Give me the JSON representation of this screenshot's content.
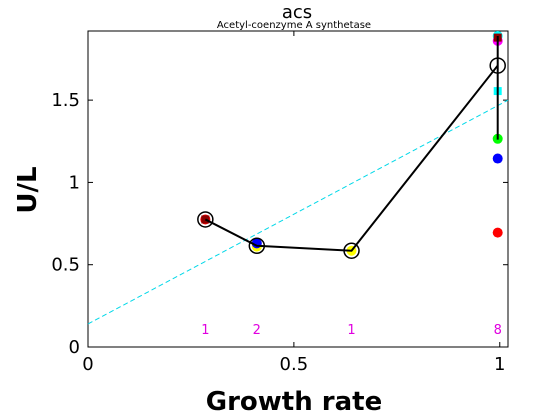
{
  "chart_data": {
    "type": "scatter",
    "title": "acs",
    "subtitle": "Acetyl-coenzyme A synthetase",
    "xlabel": "Growth rate",
    "ylabel": "U/L",
    "xlim": [
      0,
      1.02
    ],
    "ylim": [
      0,
      1.92
    ],
    "x_ticks": [
      0,
      0.5,
      1
    ],
    "x_tick_labels": [
      "0",
      "0.5",
      "1"
    ],
    "y_ticks": [
      0,
      0.5,
      1,
      1.5
    ],
    "y_tick_labels": [
      "0",
      "0.5",
      "1",
      "1.5"
    ],
    "grid": false,
    "mean_line": {
      "color": "#000000",
      "points": [
        {
          "x": 0.285,
          "y": 0.775
        },
        {
          "x": 0.41,
          "y": 0.615
        },
        {
          "x": 0.64,
          "y": 0.585
        },
        {
          "x": 0.995,
          "y": 1.71
        }
      ]
    },
    "mean_line_error_bar": {
      "x": 0.995,
      "y_low": 1.26,
      "y_high": 1.89
    },
    "fit_line": {
      "color": "#00d8e8",
      "style": "dashed",
      "x": [
        0,
        1.02
      ],
      "y": [
        0.14,
        1.5
      ]
    },
    "points": [
      {
        "x": 0.285,
        "y": 0.775,
        "color": "#ff0000"
      },
      {
        "x": 0.285,
        "y": 0.775,
        "color": "#8b0000",
        "shape": "square"
      },
      {
        "x": 0.41,
        "y": 0.61,
        "color": "#ffff00"
      },
      {
        "x": 0.41,
        "y": 0.63,
        "color": "#0000ff"
      },
      {
        "x": 0.64,
        "y": 0.585,
        "color": "#ffff00"
      },
      {
        "x": 0.995,
        "y": 1.89,
        "color": "#00ffff"
      },
      {
        "x": 0.995,
        "y": 1.86,
        "color": "#ff00ff"
      },
      {
        "x": 0.995,
        "y": 1.88,
        "color": "#8b0000",
        "shape": "square"
      },
      {
        "x": 0.995,
        "y": 1.555,
        "color": "#00ffff",
        "shape": "square"
      },
      {
        "x": 0.995,
        "y": 1.265,
        "color": "#00ff00"
      },
      {
        "x": 0.995,
        "y": 1.145,
        "color": "#0000ff"
      },
      {
        "x": 0.995,
        "y": 0.695,
        "color": "#ff0000"
      }
    ],
    "counts": [
      {
        "x": 0.285,
        "label": "1"
      },
      {
        "x": 0.41,
        "label": "2"
      },
      {
        "x": 0.64,
        "label": "1"
      },
      {
        "x": 0.995,
        "label": "8"
      }
    ],
    "count_color": "#e000e0"
  }
}
